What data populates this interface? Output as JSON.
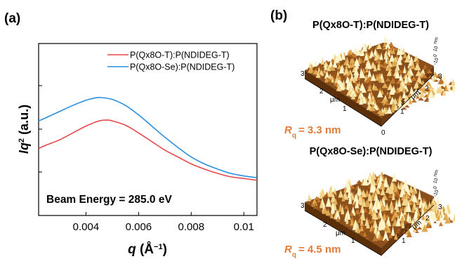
{
  "chart_data": [
    {
      "type": "line",
      "panel_label": "(a)",
      "xlabel": "q (Å⁻¹)",
      "ylabel": "Iq² (a.u.)",
      "xlim": [
        0.0022,
        0.0105
      ],
      "ylim": [
        0,
        1
      ],
      "x_ticks": [
        0.004,
        0.006,
        0.008,
        0.01
      ],
      "x_tick_labels": [
        "0.004",
        "0.006",
        "0.008",
        "0.01"
      ],
      "annotation": "Beam Energy = 285.0 eV",
      "legend_position": "top-right",
      "series": [
        {
          "name": "P(Qx8O-T):P(NDIDEG-T)",
          "color": "#e8474c",
          "x": [
            0.0022,
            0.0025,
            0.003,
            0.0035,
            0.004,
            0.0045,
            0.0048,
            0.005,
            0.0055,
            0.006,
            0.0065,
            0.007,
            0.0075,
            0.008,
            0.0085,
            0.009,
            0.0095,
            0.01,
            0.0105
          ],
          "values": [
            0.39,
            0.41,
            0.44,
            0.48,
            0.52,
            0.55,
            0.555,
            0.55,
            0.525,
            0.48,
            0.43,
            0.38,
            0.34,
            0.3,
            0.27,
            0.245,
            0.225,
            0.215,
            0.205
          ]
        },
        {
          "name": "P(Qx8O-Se):P(NDIDEG-T)",
          "color": "#2a8fe0",
          "x": [
            0.0022,
            0.0025,
            0.003,
            0.0035,
            0.004,
            0.0044,
            0.0046,
            0.005,
            0.0055,
            0.006,
            0.0065,
            0.007,
            0.0075,
            0.008,
            0.0085,
            0.009,
            0.0095,
            0.01,
            0.0105
          ],
          "values": [
            0.55,
            0.57,
            0.605,
            0.64,
            0.67,
            0.685,
            0.685,
            0.675,
            0.64,
            0.585,
            0.52,
            0.455,
            0.395,
            0.34,
            0.3,
            0.27,
            0.245,
            0.23,
            0.22
          ]
        }
      ]
    },
    {
      "type": "other",
      "panel_label": "(b)",
      "images": [
        {
          "title": "P(Qx8O-T):P(NDIDEG-T)",
          "rq_label": "R",
          "rq_sub": "q",
          "rq_value": "= 3.3 nm",
          "x_ticks": [
            "3",
            "2",
            "1",
            "0"
          ],
          "y_ticks": [
            "3",
            "2",
            "1"
          ],
          "unit": "μm",
          "z_ticks": [
            "10",
            "0",
            "-10"
          ],
          "z_unit": "nm"
        },
        {
          "title": "P(Qx8O-Se):P(NDIDEG-T)",
          "rq_label": "R",
          "rq_sub": "q",
          "rq_value": "= 4.5 nm",
          "x_ticks": [
            "3",
            "2",
            "1",
            "0"
          ],
          "y_ticks": [
            "3",
            "2",
            "1"
          ],
          "unit": "μm",
          "z_ticks": [
            "10",
            "0",
            "-10"
          ],
          "z_unit": "nm"
        }
      ]
    }
  ]
}
